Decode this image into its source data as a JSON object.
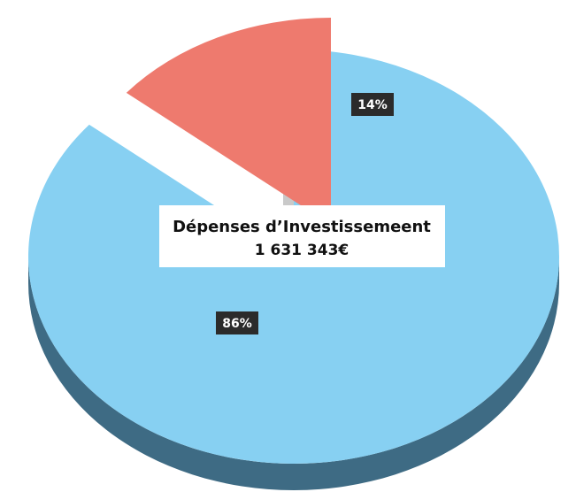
{
  "chart_data": {
    "type": "pie",
    "style": "3d-exploded",
    "title": "Dépenses d’Investissemeent",
    "total_label": "1 631 343€",
    "slices": [
      {
        "label": "86%",
        "value": 86,
        "color": "#87D0F2",
        "side_color": "#3E6B84",
        "exploded": false
      },
      {
        "label": "14%",
        "value": 14,
        "color": "#EE7A6E",
        "side_color": "#B04A40",
        "exploded": true
      }
    ]
  }
}
